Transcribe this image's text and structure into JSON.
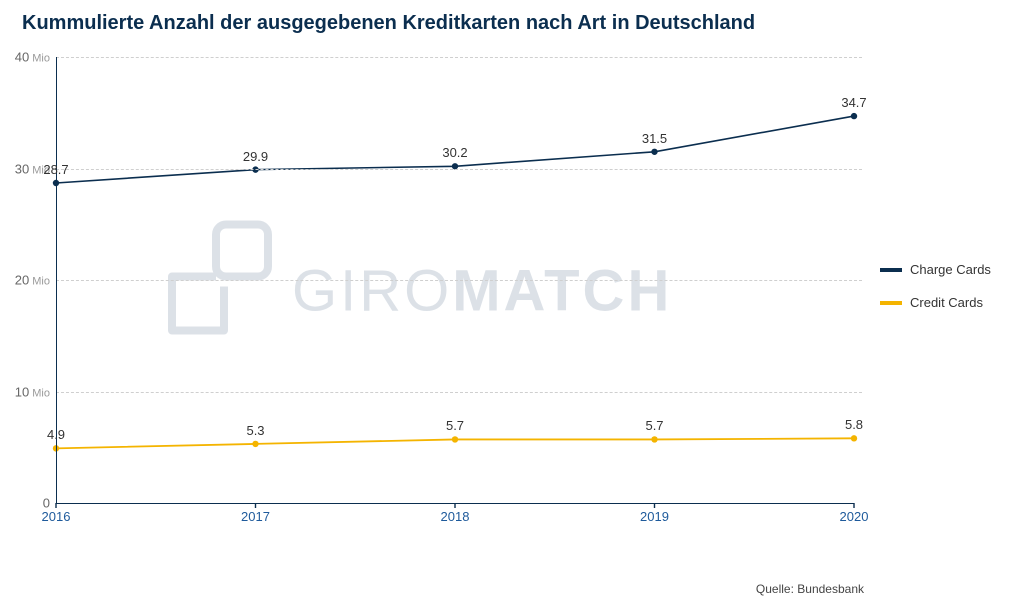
{
  "title": "Kummulierte Anzahl der ausgegebenen Kreditkarten nach Art in Deutschland",
  "chart": {
    "type": "line",
    "background_color": "#ffffff",
    "grid_color": "#cfcfcf",
    "grid_dash": true,
    "axis_color": "#0b2e4f",
    "title_fontsize": 20,
    "title_color": "#0b2e4f",
    "label_fontsize": 13,
    "x_labels": [
      "2016",
      "2017",
      "2018",
      "2019",
      "2020"
    ],
    "x_label_color": "#1e5a9b",
    "y_min": 0,
    "y_max": 40,
    "y_ticks": [
      0,
      10,
      20,
      30,
      40
    ],
    "y_unit": "Mio",
    "series": [
      {
        "name": "Charge Cards",
        "color": "#0b2e4f",
        "line_width": 1.6,
        "marker": "circle",
        "marker_size": 3.2,
        "values": [
          28.7,
          29.9,
          30.2,
          31.5,
          34.7
        ],
        "label_offset_y": -14
      },
      {
        "name": "Credit Cards",
        "color": "#f4b400",
        "line_width": 1.8,
        "marker": "circle",
        "marker_size": 3.2,
        "values": [
          4.9,
          5.3,
          5.7,
          5.7,
          5.8
        ],
        "label_offset_y": -14
      }
    ],
    "watermark": {
      "text_a": "GIRO",
      "text_b": "MATCH",
      "color": "#95a5b8",
      "opacity": 0.32
    }
  },
  "legend": {
    "items": [
      {
        "label": "Charge Cards",
        "color": "#0b2e4f"
      },
      {
        "label": "Credit Cards",
        "color": "#f4b400"
      }
    ]
  },
  "source": "Quelle: Bundesbank"
}
